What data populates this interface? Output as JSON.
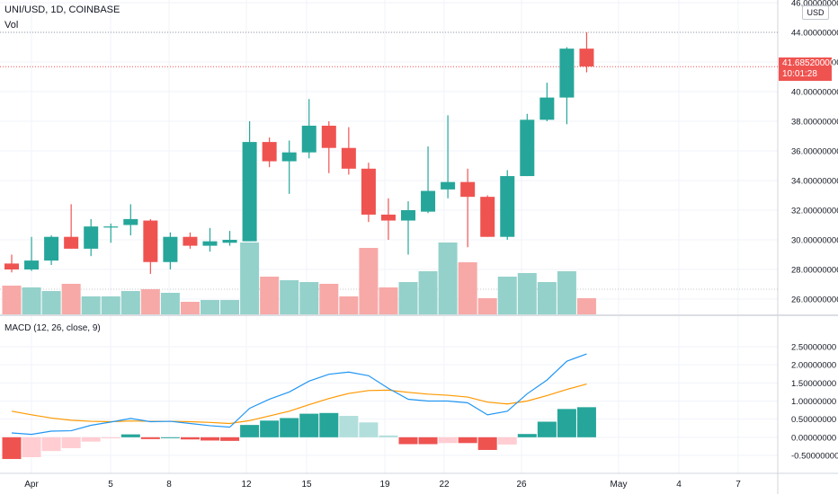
{
  "header": {
    "symbol_line": "UNI/USD, 1D, COINBASE",
    "volume_label": "Vol",
    "macd_label": "MACD (12, 26, close, 9)",
    "currency": "USD"
  },
  "last_price": {
    "price": "41.68520000",
    "countdown": "10:01:28",
    "value": 41.6852,
    "color": "#ef5350"
  },
  "colors": {
    "up": "#26a69a",
    "down": "#ef5350",
    "up_volume": "#94d1cb",
    "down_volume": "#f7a9a7",
    "macd_line": "#2196f3",
    "signal_line": "#ff9800",
    "hist_up_strong": "#26a69a",
    "hist_up_weak": "#b2dfdb",
    "hist_down_strong": "#ef5350",
    "hist_down_weak": "#ffcdd2"
  },
  "chart_data": [
    {
      "type": "candlestick",
      "title": "UNI/USD, 1D, COINBASE",
      "x_tick_labels": [
        "Apr",
        "5",
        "8",
        "12",
        "15",
        "19",
        "22",
        "26",
        "May",
        "4",
        "7"
      ],
      "y_tick_labels": [
        "46.00000000",
        "44.00000000",
        "42.00000000",
        "40.00000000",
        "38.00000000",
        "36.00000000",
        "34.00000000",
        "32.00000000",
        "30.00000000",
        "28.00000000",
        "26.00000000"
      ],
      "ylim": [
        25.2,
        46.0
      ],
      "candles": [
        {
          "open": 28.4,
          "high": 29.0,
          "low": 27.8,
          "close": 28.0
        },
        {
          "open": 28.0,
          "high": 30.2,
          "low": 27.9,
          "close": 28.6
        },
        {
          "open": 28.6,
          "high": 30.3,
          "low": 28.3,
          "close": 30.2
        },
        {
          "open": 30.2,
          "high": 32.4,
          "low": 29.4,
          "close": 29.4
        },
        {
          "open": 29.4,
          "high": 31.4,
          "low": 28.9,
          "close": 30.9
        },
        {
          "open": 30.9,
          "high": 31.1,
          "low": 29.8,
          "close": 30.9
        },
        {
          "open": 31.0,
          "high": 32.4,
          "low": 30.3,
          "close": 31.4
        },
        {
          "open": 31.3,
          "high": 31.4,
          "low": 27.7,
          "close": 28.5
        },
        {
          "open": 28.5,
          "high": 30.5,
          "low": 28.0,
          "close": 30.2
        },
        {
          "open": 30.2,
          "high": 30.5,
          "low": 29.4,
          "close": 29.6
        },
        {
          "open": 29.6,
          "high": 30.8,
          "low": 29.2,
          "close": 29.9
        },
        {
          "open": 29.8,
          "high": 30.6,
          "low": 29.6,
          "close": 30.0
        },
        {
          "open": 29.9,
          "high": 38.0,
          "low": 29.9,
          "close": 36.6
        },
        {
          "open": 36.6,
          "high": 36.9,
          "low": 34.9,
          "close": 35.3
        },
        {
          "open": 35.3,
          "high": 36.7,
          "low": 33.1,
          "close": 35.9
        },
        {
          "open": 35.9,
          "high": 39.5,
          "low": 35.5,
          "close": 37.7
        },
        {
          "open": 37.7,
          "high": 38.0,
          "low": 34.5,
          "close": 36.2
        },
        {
          "open": 36.2,
          "high": 37.6,
          "low": 34.4,
          "close": 34.8
        },
        {
          "open": 34.8,
          "high": 35.2,
          "low": 31.2,
          "close": 31.7
        },
        {
          "open": 31.7,
          "high": 32.8,
          "low": 30.0,
          "close": 31.3
        },
        {
          "open": 31.3,
          "high": 32.6,
          "low": 29.0,
          "close": 32.0
        },
        {
          "open": 31.9,
          "high": 36.3,
          "low": 31.8,
          "close": 33.3
        },
        {
          "open": 33.4,
          "high": 38.4,
          "low": 32.8,
          "close": 33.9
        },
        {
          "open": 33.9,
          "high": 34.8,
          "low": 29.5,
          "close": 32.9
        },
        {
          "open": 32.9,
          "high": 33.0,
          "low": 30.2,
          "close": 30.2
        },
        {
          "open": 30.2,
          "high": 34.7,
          "low": 30.0,
          "close": 34.3
        },
        {
          "open": 34.3,
          "high": 38.5,
          "low": 34.3,
          "close": 38.1
        },
        {
          "open": 38.1,
          "high": 40.6,
          "low": 38.0,
          "close": 39.6
        },
        {
          "open": 39.6,
          "high": 43.0,
          "low": 37.8,
          "close": 42.9
        },
        {
          "open": 42.9,
          "high": 44.0,
          "low": 41.3,
          "close": 41.7
        }
      ]
    },
    {
      "type": "bar",
      "title": "Vol",
      "values": [
        16,
        15,
        13,
        17,
        10,
        10,
        13,
        14,
        12,
        7,
        8,
        8,
        40,
        21,
        19,
        18,
        17,
        10,
        37,
        15,
        18,
        24,
        40,
        29,
        9,
        21,
        23,
        18,
        24,
        9
      ]
    },
    {
      "type": "line",
      "title": "MACD (12, 26, close, 9)",
      "y_tick_labels": [
        "2.50000000",
        "2.00000000",
        "1.50000000",
        "1.00000000",
        "0.50000000",
        "0.00000000",
        "-0.50000000"
      ],
      "ylim": [
        -0.95,
        2.5
      ],
      "series": [
        {
          "values": [
            0.12,
            0.08,
            0.17,
            0.18,
            0.33,
            0.42,
            0.52,
            0.43,
            0.44,
            0.38,
            0.32,
            0.28,
            0.8,
            1.05,
            1.25,
            1.55,
            1.74,
            1.8,
            1.7,
            1.35,
            1.05,
            1.0,
            1.0,
            0.95,
            0.62,
            0.72,
            1.2,
            1.58,
            2.1,
            2.3
          ]
        },
        {
          "values": [
            0.72,
            0.62,
            0.53,
            0.47,
            0.44,
            0.43,
            0.45,
            0.44,
            0.44,
            0.43,
            0.41,
            0.38,
            0.46,
            0.59,
            0.72,
            0.9,
            1.07,
            1.21,
            1.29,
            1.3,
            1.24,
            1.19,
            1.16,
            1.11,
            0.97,
            0.92,
            1.0,
            1.15,
            1.32,
            1.47
          ]
        },
        {
          "values": [
            -0.6,
            -0.55,
            -0.38,
            -0.3,
            -0.12,
            -0.03,
            0.08,
            -0.05,
            0.0,
            -0.06,
            -0.09,
            -0.1,
            0.34,
            0.46,
            0.53,
            0.65,
            0.67,
            0.59,
            0.41,
            0.05,
            -0.19,
            -0.19,
            -0.16,
            -0.16,
            -0.35,
            -0.2,
            0.09,
            0.43,
            0.78,
            0.83
          ]
        }
      ]
    }
  ]
}
